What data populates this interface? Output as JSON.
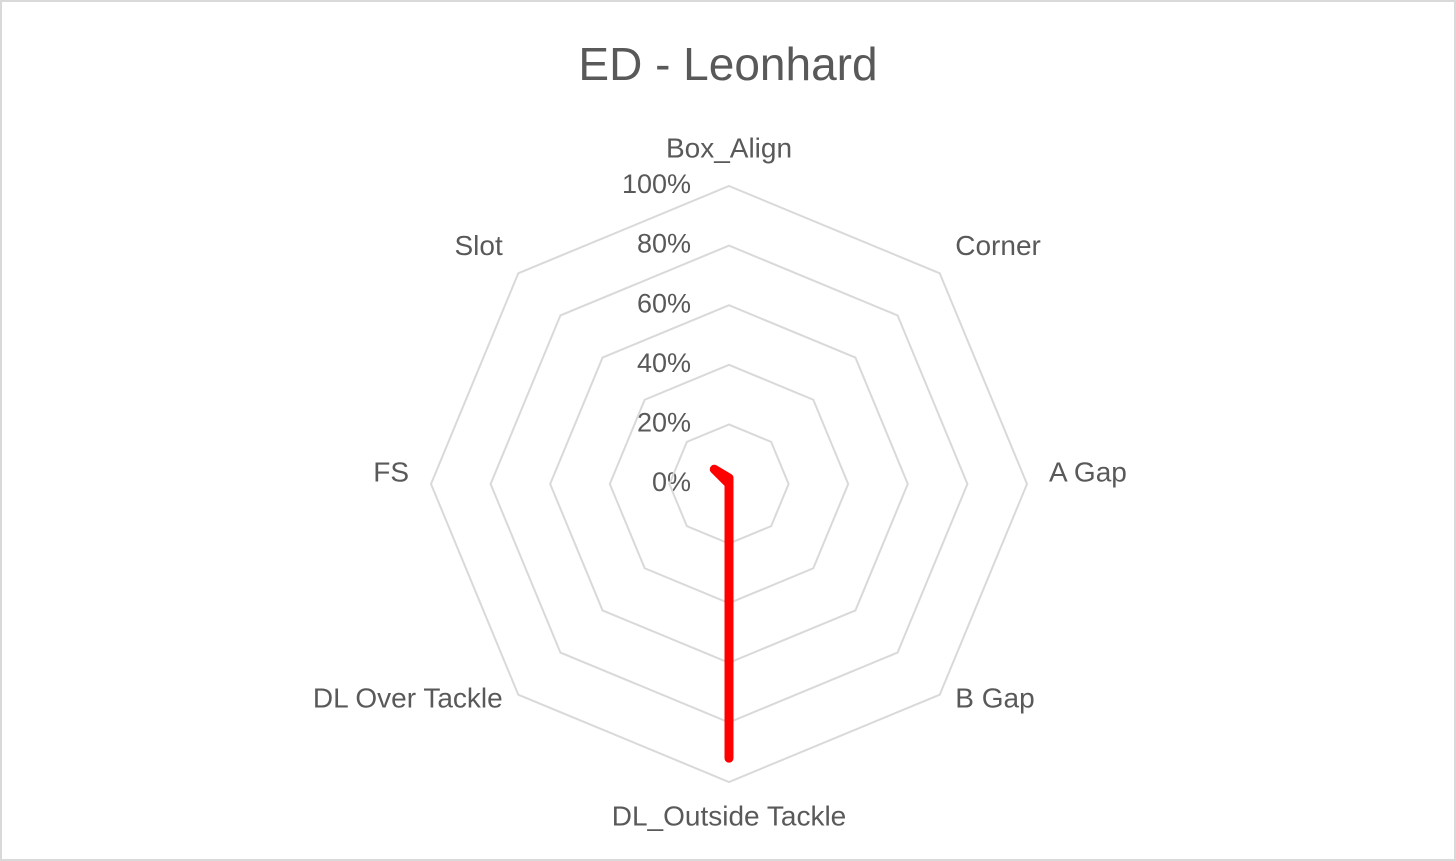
{
  "chart_data": {
    "type": "radar",
    "title": "ED - Leonhard",
    "categories": [
      "Box_Align",
      "Corner",
      "A Gap",
      "B Gap",
      "DL_Outside Tackle",
      "DL Over Tackle",
      "FS",
      "Slot"
    ],
    "series": [
      {
        "color": "#ff0000",
        "values": [
          2,
          0,
          0,
          0,
          92,
          0,
          0,
          7
        ]
      }
    ],
    "ylim": [
      0,
      100
    ],
    "yticks": [
      {
        "value": 0,
        "label": "0%"
      },
      {
        "value": 20,
        "label": "20%"
      },
      {
        "value": 40,
        "label": "40%"
      },
      {
        "value": 60,
        "label": "60%"
      },
      {
        "value": 80,
        "label": "80%"
      },
      {
        "value": 100,
        "label": "100%"
      }
    ],
    "grid": true
  }
}
